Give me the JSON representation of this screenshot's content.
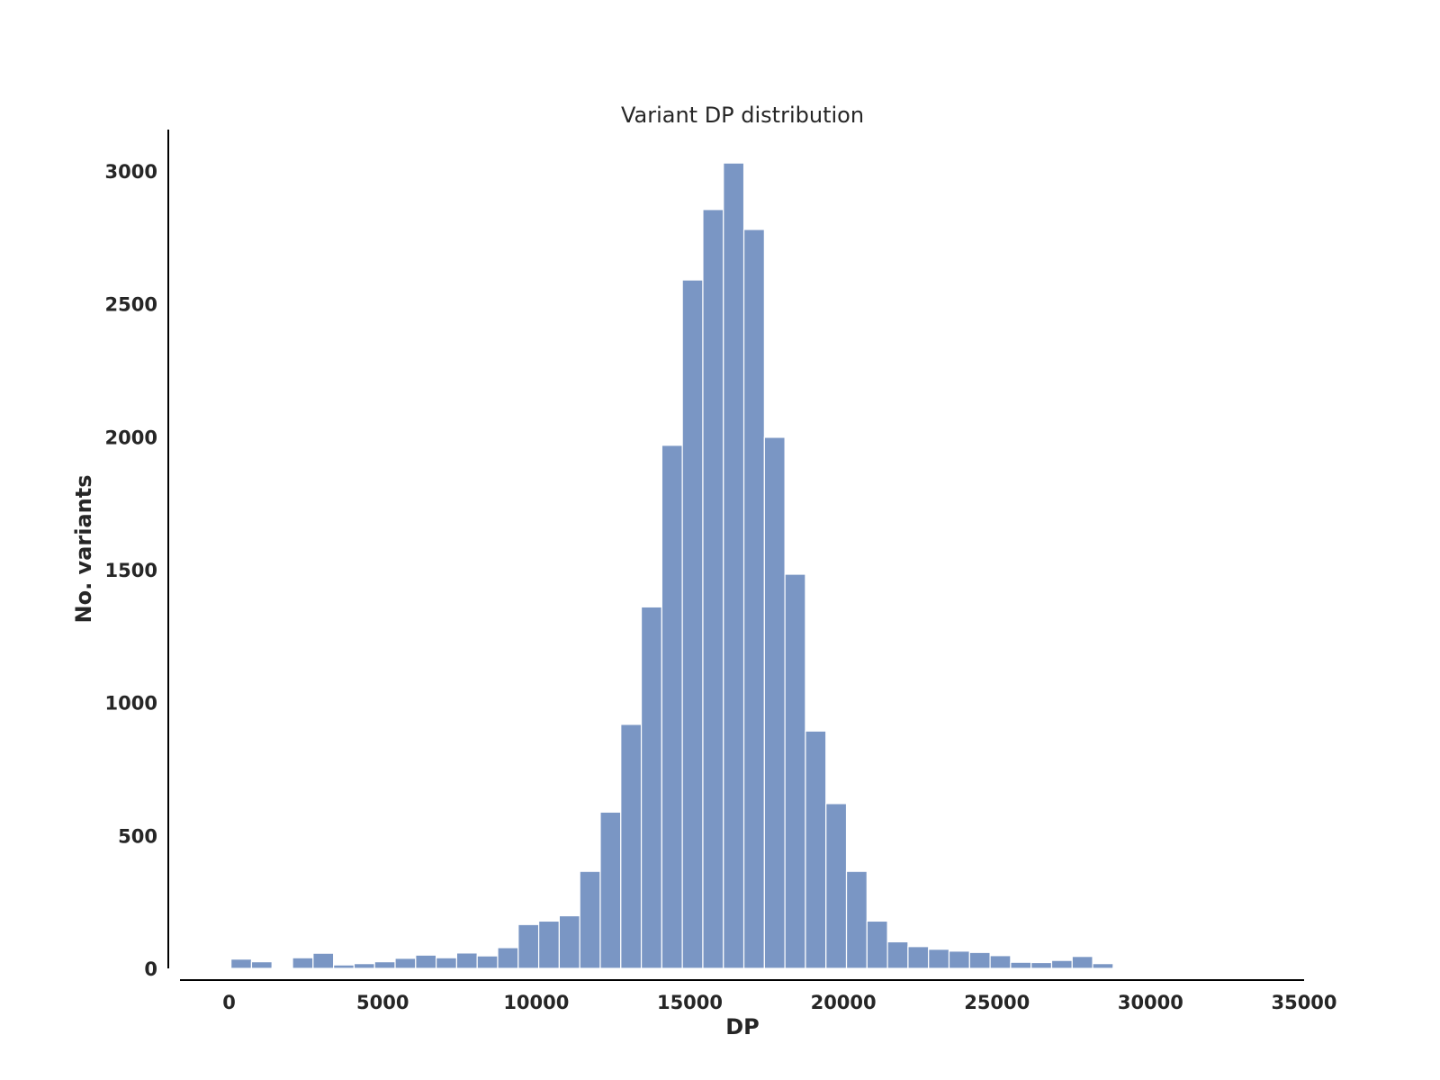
{
  "chart_data": {
    "type": "bar",
    "subtype": "histogram",
    "title": "Variant DP distribution",
    "xlabel": "DP",
    "ylabel": "No. variants",
    "xlim": [
      -1600,
      35000
    ],
    "ylim": [
      0,
      3180
    ],
    "xticks": [
      0,
      5000,
      10000,
      15000,
      20000,
      25000,
      30000,
      35000
    ],
    "yticks": [
      0,
      500,
      1000,
      1500,
      2000,
      2500,
      3000
    ],
    "bar_color": "#7a96c4",
    "grid": false,
    "bins": {
      "start": 60,
      "width": 668,
      "counts": [
        35,
        25,
        3,
        40,
        57,
        13,
        18,
        25,
        38,
        50,
        40,
        58,
        47,
        78,
        165,
        178,
        198,
        365,
        588,
        918,
        1360,
        1968,
        2590,
        2855,
        3030,
        2780,
        1998,
        1483,
        893,
        620,
        365,
        178,
        100,
        82,
        72,
        65,
        60,
        48,
        23,
        22,
        30,
        45,
        18,
        3
      ]
    }
  }
}
